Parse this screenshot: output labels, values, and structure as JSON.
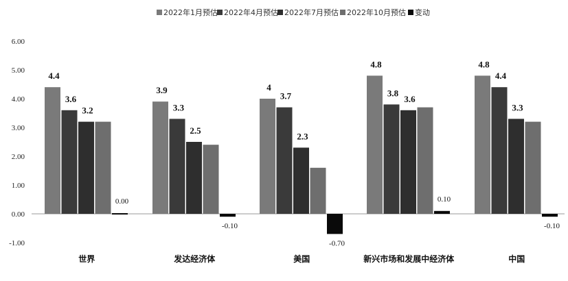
{
  "chart_data": {
    "type": "bar",
    "categories": [
      "世界",
      "发达经济体",
      "美国",
      "新兴市场和发展中经济体",
      "中国"
    ],
    "series": [
      {
        "name": "2022年1月预估",
        "color": "#7a7a7a",
        "values": [
          4.4,
          3.9,
          4.0,
          4.8,
          4.8
        ],
        "labels": [
          "4.4",
          "3.9",
          "4",
          "4.8",
          "4.8"
        ]
      },
      {
        "name": "2022年4月预估",
        "color": "#3a3a3a",
        "values": [
          3.6,
          3.3,
          3.7,
          3.8,
          4.4
        ],
        "labels": [
          "3.6",
          "3.3",
          "3.7",
          "3.8",
          "4.4"
        ]
      },
      {
        "name": "2022年7月预估",
        "color": "#2e2e2e",
        "values": [
          3.2,
          2.5,
          2.3,
          3.6,
          3.3
        ],
        "labels": [
          "3.2",
          "2.5",
          "2.3",
          "3.6",
          "3.3"
        ]
      },
      {
        "name": "2022年10月预估",
        "color": "#6e6e6e",
        "values": [
          3.2,
          2.4,
          1.6,
          3.7,
          3.2
        ],
        "labels": [
          "",
          "",
          "",
          "",
          ""
        ]
      },
      {
        "name": "变动",
        "color": "#0a0a0a",
        "values": [
          0.0,
          -0.1,
          -0.7,
          0.1,
          -0.1
        ],
        "labels": [
          "0.00",
          "-0.10",
          "-0.70",
          "0.10",
          "-0.10"
        ]
      }
    ],
    "y_ticks": [
      "6.00",
      "5.00",
      "4.00",
      "3.00",
      "2.00",
      "1.00",
      "0.00",
      "-1.00"
    ],
    "ylim": [
      -1,
      6
    ],
    "grid": false,
    "legend_position": "top-center"
  }
}
